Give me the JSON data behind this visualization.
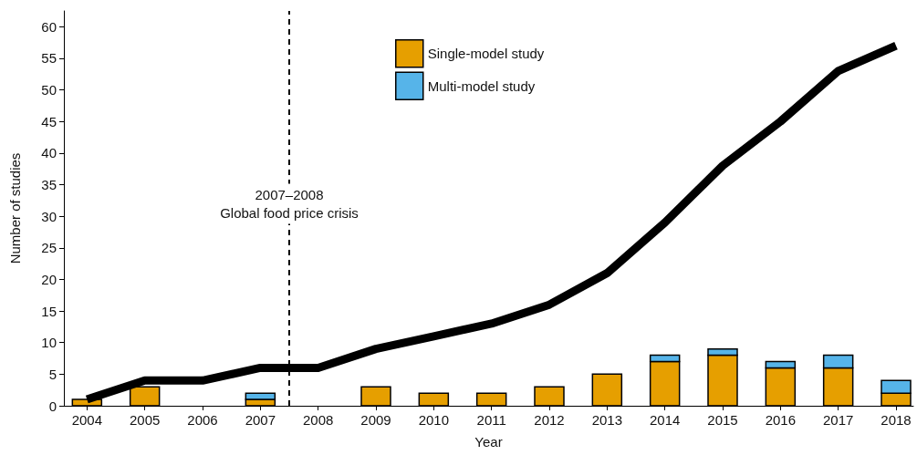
{
  "chart_data": {
    "type": "bar",
    "xlabel": "Year",
    "ylabel": "Number of studies",
    "x": [
      2004,
      2005,
      2006,
      2007,
      2008,
      2009,
      2010,
      2011,
      2012,
      2013,
      2014,
      2015,
      2016,
      2017,
      2018
    ],
    "xlim": [
      2003.6,
      2018.3
    ],
    "xticks": [
      2004,
      2005,
      2006,
      2007,
      2008,
      2009,
      2010,
      2011,
      2012,
      2013,
      2014,
      2015,
      2016,
      2017,
      2018
    ],
    "ylim": [
      0,
      62.5
    ],
    "yticks": [
      0,
      5,
      10,
      15,
      20,
      25,
      30,
      35,
      40,
      45,
      50,
      55,
      60
    ],
    "stacked": true,
    "legend": "top",
    "grid": false,
    "series": [
      {
        "name": "Single-model study",
        "color": "#e69f00",
        "values": [
          1,
          3,
          0,
          1,
          0,
          3,
          2,
          2,
          3,
          5,
          7,
          8,
          6,
          6,
          2
        ]
      },
      {
        "name": "Multi-model study",
        "color": "#56b4e9",
        "values": [
          0,
          0,
          0,
          1,
          0,
          0,
          0,
          0,
          0,
          0,
          1,
          1,
          1,
          2,
          2
        ]
      },
      {
        "type": "line",
        "color": "#000000",
        "marker": "none",
        "values": [
          1,
          4,
          4,
          6,
          6,
          9,
          11,
          13,
          16,
          21,
          29,
          38,
          45,
          53,
          57
        ]
      }
    ],
    "ref_lines": [
      {
        "axis": "x",
        "value": 2007.5,
        "label": "2007–2008\nGlobal food price crisis",
        "color": "#000000",
        "line_style": "dashed"
      }
    ]
  }
}
